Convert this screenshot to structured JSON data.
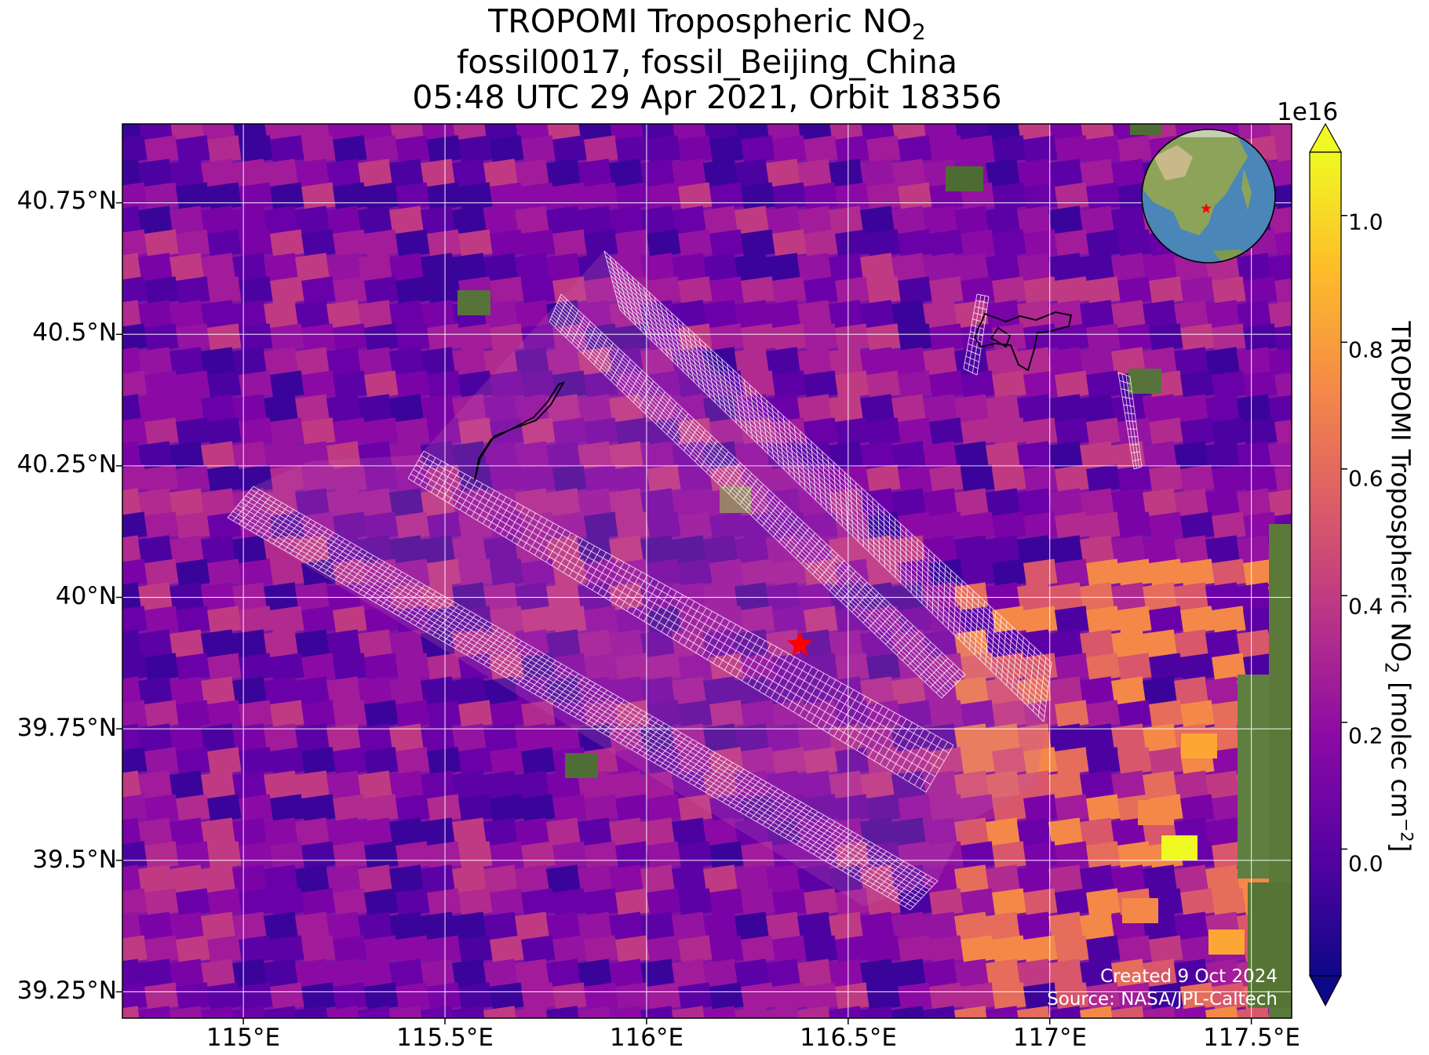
{
  "title": {
    "line1_text": "TROPOMI Tropospheric NO",
    "line1_sub": "2",
    "line2": "fossil0017, fossil_Beijing_China",
    "line3": "05:48 UTC 29 Apr 2021, Orbit 18356"
  },
  "axes": {
    "y_ticks": [
      "40.75°N",
      "40.5°N",
      "40.25°N",
      "40°N",
      "39.75°N",
      "39.5°N",
      "39.25°N"
    ],
    "x_ticks": [
      "115°E",
      "115.5°E",
      "116°E",
      "116.5°E",
      "117°E",
      "117.5°E"
    ],
    "lon_range": [
      114.7,
      117.6
    ],
    "lat_range": [
      39.2,
      40.9
    ],
    "grid": true
  },
  "colorbar": {
    "exponent": "1e16",
    "ticks": [
      "1.0",
      "0.8",
      "0.6",
      "0.4",
      "0.2",
      "0.0"
    ],
    "label_text": "TROPOMI Tropospheric NO",
    "label_sub": "2",
    "label_unit": " [molec cm",
    "label_sup": "−2",
    "label_end": "]",
    "range": [
      -0.2,
      1.1
    ],
    "colormap": "plasma"
  },
  "target": {
    "name": "fossil_Beijing_China",
    "lon": 116.38,
    "lat": 39.91,
    "marker_color": "#ff0000"
  },
  "credits": {
    "created": "Created 9 Oct 2024",
    "source": "Source: NASA/JPL-Caltech"
  },
  "colors": {
    "grid": "#ffffff",
    "outline": "#000000",
    "ocean": "#4a86b8",
    "land": "#5b7a3a"
  }
}
